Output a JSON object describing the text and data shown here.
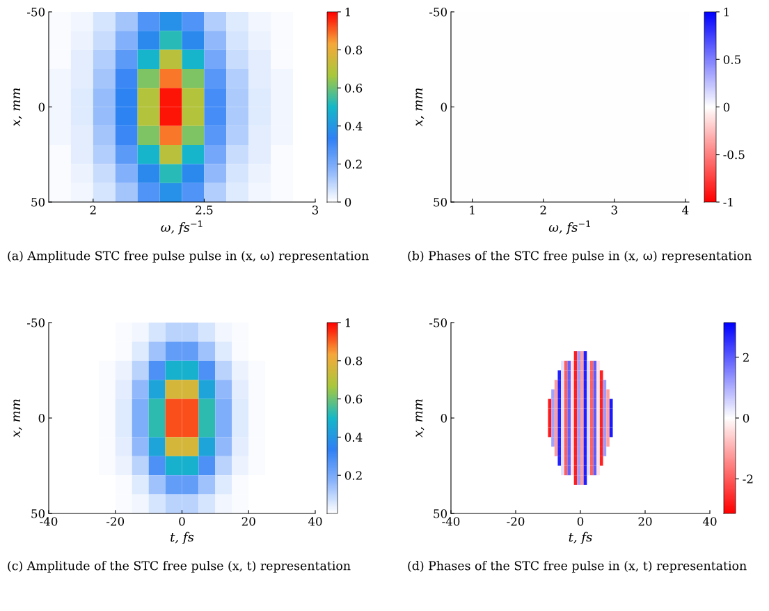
{
  "chart_data": [
    {
      "type": "heatmap",
      "xlabel": "ω, fs$^{−1}$",
      "ylabel": "x, mm",
      "annotations": [
        "(a) Amplitude STC free pulse pulse in (x, ω) representation"
      ],
      "x": [
        1.85,
        1.95,
        2.05,
        2.15,
        2.25,
        2.35,
        2.45,
        2.55,
        2.65,
        2.75,
        2.85,
        2.95
      ],
      "xlim": [
        1.8,
        3
      ],
      "xticks": [
        2,
        2.5,
        3
      ],
      "ylim": [
        50,
        -50
      ],
      "yticks": [
        -50,
        0,
        50
      ],
      "colors": [
        "#ffffff",
        "#8ab4fb",
        "#2f80f5",
        "#14b8c8",
        "#a8c83c",
        "#f6a83a",
        "#ff0000"
      ],
      "clim": [
        0,
        1
      ],
      "cticks": [
        0,
        0.2,
        0.4,
        0.6,
        0.8,
        1
      ],
      "cells": [
        [
          0.01,
          0.02,
          0.06,
          0.13,
          0.27,
          0.38,
          0.27,
          0.11,
          0.05,
          0.02,
          0.01,
          0
        ],
        [
          0.01,
          0.03,
          0.08,
          0.18,
          0.36,
          0.52,
          0.36,
          0.16,
          0.06,
          0.03,
          0.01,
          0
        ],
        [
          0.01,
          0.04,
          0.11,
          0.25,
          0.49,
          0.7,
          0.49,
          0.21,
          0.08,
          0.04,
          0.01,
          0
        ],
        [
          0.02,
          0.04,
          0.13,
          0.31,
          0.62,
          0.88,
          0.62,
          0.26,
          0.11,
          0.04,
          0.02,
          0
        ],
        [
          0.02,
          0.05,
          0.15,
          0.34,
          0.69,
          0.98,
          0.69,
          0.29,
          0.12,
          0.05,
          0.02,
          0
        ],
        [
          0.02,
          0.05,
          0.15,
          0.34,
          0.69,
          0.98,
          0.69,
          0.29,
          0.12,
          0.05,
          0.02,
          0
        ],
        [
          0.02,
          0.04,
          0.13,
          0.31,
          0.62,
          0.88,
          0.62,
          0.26,
          0.11,
          0.04,
          0.02,
          0
        ],
        [
          0.01,
          0.04,
          0.11,
          0.25,
          0.49,
          0.7,
          0.49,
          0.21,
          0.08,
          0.04,
          0.01,
          0
        ],
        [
          0.01,
          0.03,
          0.08,
          0.18,
          0.36,
          0.52,
          0.36,
          0.16,
          0.06,
          0.03,
          0.01,
          0
        ],
        [
          0.01,
          0.02,
          0.06,
          0.13,
          0.27,
          0.38,
          0.27,
          0.11,
          0.05,
          0.02,
          0.01,
          0
        ]
      ]
    },
    {
      "type": "heatmap",
      "xlabel": "ω, fs$^{−1}$",
      "ylabel": "x, mm",
      "annotations": [
        "(b) Phases of the STC free pulse in (x, ω) representation"
      ],
      "xlim": [
        0.7,
        4.05
      ],
      "xticks": [
        1,
        2,
        3,
        4
      ],
      "ylim": [
        50,
        -50
      ],
      "yticks": [
        -50,
        0,
        50
      ],
      "colors": [
        "#ff0000",
        "#ffffff",
        "#0000ff"
      ],
      "clim": [
        -1,
        1
      ],
      "cticks": [
        -1,
        -0.5,
        0,
        0.5,
        1
      ],
      "cells": [
        [
          0
        ]
      ]
    },
    {
      "type": "heatmap",
      "xlabel": "t, fs",
      "ylabel": "x, mm",
      "annotations": [
        "(c) Amplitude of the STC free pulse (x, t) representation"
      ],
      "x": [
        -37.5,
        -32.5,
        -27.5,
        -22.5,
        -17.5,
        -12.5,
        -7.5,
        -2.5,
        2.5,
        7.5,
        12.5,
        17.5,
        22.5,
        27.5,
        32.5,
        37.5
      ],
      "xlim": [
        -40,
        40
      ],
      "xticks": [
        -40,
        -20,
        0,
        20,
        40
      ],
      "ylim": [
        50,
        -50
      ],
      "yticks": [
        -50,
        0,
        50
      ],
      "colors": [
        "#ffffff",
        "#8ab4fb",
        "#2f80f5",
        "#14b8c8",
        "#a8c83c",
        "#f6a83a",
        "#ff0000"
      ],
      "clim": [
        0,
        1
      ],
      "cticks": [
        0.2,
        0.4,
        0.6,
        0.8,
        1
      ],
      "cells": [
        [
          0,
          0,
          0,
          0,
          0.01,
          0.02,
          0.06,
          0.1,
          0.1,
          0.06,
          0.02,
          0.01,
          0,
          0,
          0,
          0
        ],
        [
          0,
          0,
          0,
          0,
          0.01,
          0.05,
          0.14,
          0.24,
          0.24,
          0.14,
          0.05,
          0.01,
          0,
          0,
          0,
          0
        ],
        [
          0,
          0,
          0,
          0.01,
          0.03,
          0.1,
          0.28,
          0.48,
          0.48,
          0.28,
          0.1,
          0.03,
          0.01,
          0,
          0,
          0
        ],
        [
          0,
          0,
          0,
          0.01,
          0.04,
          0.16,
          0.44,
          0.76,
          0.76,
          0.44,
          0.16,
          0.04,
          0.01,
          0,
          0,
          0
        ],
        [
          0,
          0,
          0,
          0.01,
          0.05,
          0.19,
          0.53,
          0.92,
          0.92,
          0.53,
          0.19,
          0.05,
          0.01,
          0,
          0,
          0
        ],
        [
          0,
          0,
          0,
          0.01,
          0.05,
          0.19,
          0.53,
          0.92,
          0.92,
          0.53,
          0.19,
          0.05,
          0.01,
          0,
          0,
          0
        ],
        [
          0,
          0,
          0,
          0.01,
          0.04,
          0.16,
          0.44,
          0.76,
          0.76,
          0.44,
          0.16,
          0.04,
          0.01,
          0,
          0,
          0
        ],
        [
          0,
          0,
          0,
          0.01,
          0.03,
          0.1,
          0.28,
          0.48,
          0.48,
          0.28,
          0.1,
          0.03,
          0.01,
          0,
          0,
          0
        ],
        [
          0,
          0,
          0,
          0,
          0.01,
          0.05,
          0.14,
          0.24,
          0.24,
          0.14,
          0.05,
          0.01,
          0,
          0,
          0,
          0
        ],
        [
          0,
          0,
          0,
          0,
          0.01,
          0.02,
          0.06,
          0.1,
          0.1,
          0.06,
          0.02,
          0.01,
          0,
          0,
          0,
          0
        ]
      ]
    },
    {
      "type": "heatmap",
      "xlabel": "t, fs",
      "ylabel": "x, mm",
      "annotations": [
        "(d) Phases of the STC free pulse in (x, t) representation"
      ],
      "x": [
        -9.5,
        -8.5,
        -7.5,
        -6.5,
        -5.5,
        -4.5,
        -3.5,
        -2.5,
        -1.5,
        -0.5,
        0.5,
        1.5,
        2.5,
        3.5,
        4.5,
        5.5,
        6.5,
        7.5,
        8.5,
        9.5
      ],
      "xlim": [
        -40,
        40
      ],
      "xticks": [
        -40,
        -20,
        0,
        20,
        40
      ],
      "ylim": [
        50,
        -50
      ],
      "yticks": [
        -50,
        0,
        50
      ],
      "colors": [
        "#ff0000",
        "#ffffff",
        "#0000ff"
      ],
      "clim": [
        -3.14,
        3.14
      ],
      "cticks": [
        -2,
        0,
        2
      ],
      "y": [
        -32.5,
        -27.5,
        -22.5,
        -17.5,
        -12.5,
        -7.5,
        -2.5,
        2.5,
        7.5,
        12.5,
        17.5,
        22.5,
        27.5,
        32.5
      ],
      "cells": [
        [
          null,
          null,
          null,
          null,
          null,
          null,
          null,
          null,
          -2.76,
          1.18,
          -1.18,
          2.76,
          null,
          null,
          null,
          null,
          null,
          null,
          null,
          null
        ],
        [
          null,
          null,
          null,
          null,
          0.36,
          -1.99,
          1.94,
          -0.41,
          -2.76,
          1.18,
          -1.18,
          2.76,
          0.41,
          -1.94,
          1.99,
          -0.36,
          null,
          null,
          null,
          null
        ],
        [
          null,
          null,
          null,
          2.71,
          0.36,
          -1.99,
          1.94,
          -0.41,
          -2.76,
          1.18,
          -1.18,
          2.76,
          0.41,
          -1.94,
          1.99,
          -0.36,
          -2.71,
          null,
          null,
          null
        ],
        [
          null,
          null,
          -1.22,
          2.71,
          0.36,
          -1.99,
          1.94,
          -0.41,
          -2.76,
          1.18,
          -1.18,
          2.76,
          0.41,
          -1.94,
          1.99,
          -0.36,
          -2.71,
          1.22,
          null,
          null
        ],
        [
          null,
          1.13,
          -1.22,
          2.71,
          0.36,
          -1.99,
          1.94,
          -0.41,
          -2.76,
          1.18,
          -1.18,
          2.76,
          0.41,
          -1.94,
          1.99,
          -0.36,
          -2.71,
          1.22,
          -1.13,
          null
        ],
        [
          -2.81,
          1.13,
          -1.22,
          2.71,
          0.36,
          -1.99,
          1.94,
          -0.41,
          -2.76,
          1.18,
          -1.18,
          2.76,
          0.41,
          -1.94,
          1.99,
          -0.36,
          -2.71,
          1.22,
          -1.13,
          2.81
        ],
        [
          -2.81,
          1.13,
          -1.22,
          2.71,
          0.36,
          -1.99,
          1.94,
          -0.41,
          -2.76,
          1.18,
          -1.18,
          2.76,
          0.41,
          -1.94,
          1.99,
          -0.36,
          -2.71,
          1.22,
          -1.13,
          2.81
        ],
        [
          -2.81,
          1.13,
          -1.22,
          2.71,
          0.36,
          -1.99,
          1.94,
          -0.41,
          -2.76,
          1.18,
          -1.18,
          2.76,
          0.41,
          -1.94,
          1.99,
          -0.36,
          -2.71,
          1.22,
          -1.13,
          2.81
        ],
        [
          -2.81,
          1.13,
          -1.22,
          2.71,
          0.36,
          -1.99,
          1.94,
          -0.41,
          -2.76,
          1.18,
          -1.18,
          2.76,
          0.41,
          -1.94,
          1.99,
          -0.36,
          -2.71,
          1.22,
          -1.13,
          2.81
        ],
        [
          null,
          1.13,
          -1.22,
          2.71,
          0.36,
          -1.99,
          1.94,
          -0.41,
          -2.76,
          1.18,
          -1.18,
          2.76,
          0.41,
          -1.94,
          1.99,
          -0.36,
          -2.71,
          1.22,
          -1.13,
          null
        ],
        [
          null,
          null,
          -1.22,
          2.71,
          0.36,
          -1.99,
          1.94,
          -0.41,
          -2.76,
          1.18,
          -1.18,
          2.76,
          0.41,
          -1.94,
          1.99,
          -0.36,
          -2.71,
          1.22,
          null,
          null
        ],
        [
          null,
          null,
          null,
          2.71,
          0.36,
          -1.99,
          1.94,
          -0.41,
          -2.76,
          1.18,
          -1.18,
          2.76,
          0.41,
          -1.94,
          1.99,
          -0.36,
          -2.71,
          null,
          null,
          null
        ],
        [
          null,
          null,
          null,
          null,
          0.36,
          -1.99,
          1.94,
          -0.41,
          -2.76,
          1.18,
          -1.18,
          2.76,
          0.41,
          -1.94,
          1.99,
          -0.36,
          null,
          null,
          null,
          null
        ],
        [
          null,
          null,
          null,
          null,
          null,
          null,
          null,
          null,
          -2.76,
          1.18,
          -1.18,
          2.76,
          null,
          null,
          null,
          null,
          null,
          null,
          null,
          null
        ]
      ]
    }
  ]
}
